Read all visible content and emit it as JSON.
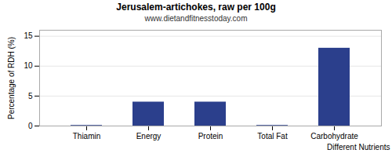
{
  "chart_data": {
    "type": "bar",
    "title": "Jerusalem-artichokes, raw per 100g",
    "subtitle": "www.dietandfitnesstoday.com",
    "xlabel": "Different Nutrients",
    "ylabel": "Percentage of RDH (%)",
    "categories": [
      "Thiamin",
      "Energy",
      "Protein",
      "Total Fat",
      "Carbohydrate"
    ],
    "values": [
      0.1,
      4.0,
      4.0,
      0.1,
      13.0
    ],
    "color": "#2b3f8c",
    "ylim": [
      0,
      16
    ],
    "yticks": [
      0,
      5,
      10,
      15
    ],
    "grid": true
  }
}
